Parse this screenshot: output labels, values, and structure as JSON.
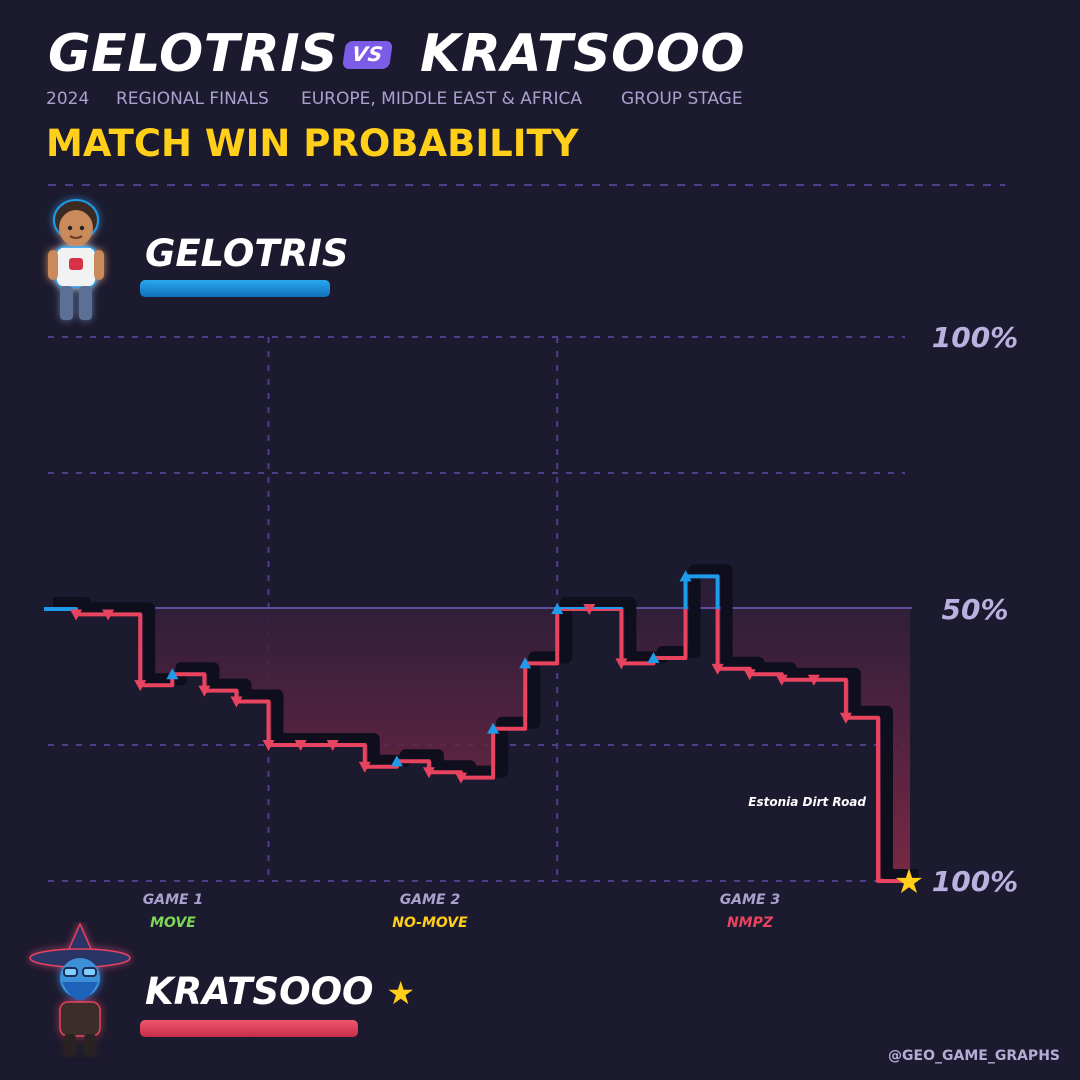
{
  "header": {
    "player1": "GELOTRIS",
    "vs": "VS",
    "player2": "KRATSOOO",
    "subtitle": {
      "year": "2024",
      "event": "REGIONAL FINALS",
      "region": "EUROPE, MIDDLE EAST & AFRICA",
      "stage": "GROUP STAGE"
    },
    "headline": "MATCH WIN PROBABILITY"
  },
  "players": {
    "top": {
      "name": "GELOTRIS",
      "color": "#1e9bea",
      "avatar_icon": "gelotris-avatar"
    },
    "bottom": {
      "name": "KRATSOOO",
      "color": "#e8435f",
      "winner_icon": "star-icon",
      "avatar_icon": "kratsooo-wizard-avatar"
    }
  },
  "credit": "@GEO_GAME_GRAPHS",
  "chart_data": {
    "type": "line",
    "title": "MATCH WIN PROBABILITY",
    "y_axis": {
      "top_label": "100%",
      "mid_label": "50%",
      "bottom_label": "100%",
      "meaning": "Gelotris win probability, 100% at top to 0% (Kratsooo 100%) at bottom",
      "ylim": [
        0,
        100
      ]
    },
    "games": [
      {
        "label": "GAME 1",
        "mode": "MOVE",
        "mode_color": "#7dd957",
        "x_range": [
          0,
          7
        ]
      },
      {
        "label": "GAME 2",
        "mode": "NO-MOVE",
        "mode_color": "#ffcf1a",
        "x_range": [
          7,
          16
        ]
      },
      {
        "label": "GAME 3",
        "mode": "NMPZ",
        "mode_color": "#e8435f",
        "x_range": [
          16,
          26
        ]
      }
    ],
    "series": [
      {
        "name": "GELOTRIS",
        "x": [
          0,
          1,
          2,
          3,
          4,
          5,
          6,
          7,
          8,
          9,
          10,
          11,
          12,
          13,
          14,
          15,
          16,
          17,
          18,
          19,
          20,
          21,
          22,
          23,
          24,
          25,
          26
        ],
        "y": [
          50,
          49,
          49,
          36,
          38,
          35,
          33,
          25,
          25,
          25,
          21,
          22,
          20,
          19,
          28,
          40,
          50,
          50,
          40,
          41,
          56,
          39,
          38,
          37,
          37,
          30,
          0
        ]
      }
    ],
    "annotations": [
      {
        "x": 25,
        "text": "Estonia Dirt Road"
      }
    ],
    "winner": "KRATSOOO",
    "grid": true,
    "legend": "none"
  }
}
